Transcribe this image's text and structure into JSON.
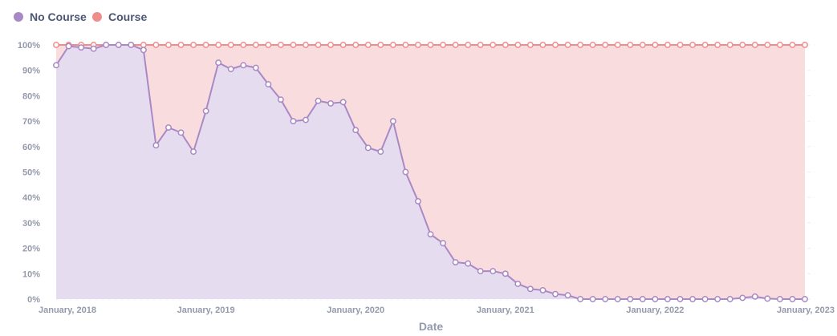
{
  "chart_data": {
    "type": "area",
    "xlabel": "Date",
    "ylabel": "",
    "ylim": [
      0,
      100
    ],
    "y_unit": "%",
    "y_ticks": [
      0,
      10,
      20,
      30,
      40,
      50,
      60,
      70,
      80,
      90,
      100
    ],
    "y_tick_labels": [
      "0%",
      "10%",
      "20%",
      "30%",
      "40%",
      "50%",
      "60%",
      "70%",
      "80%",
      "90%",
      "100%"
    ],
    "x_ticks": [
      "2018-01",
      "2019-01",
      "2020-01",
      "2021-01",
      "2022-01",
      "2023-01"
    ],
    "x_tick_labels": [
      "January, 2018",
      "January, 2019",
      "January, 2020",
      "January, 2021",
      "January, 2022",
      "January, 2023"
    ],
    "stacked": true,
    "grid": "horizontal-dashed",
    "legend": {
      "position": "top-left",
      "entries": [
        "No Course",
        "Course"
      ]
    },
    "x": [
      "2018-01",
      "2018-02",
      "2018-03",
      "2018-04",
      "2018-05",
      "2018-06",
      "2018-07",
      "2018-08",
      "2018-09",
      "2018-10",
      "2018-11",
      "2018-12",
      "2019-01",
      "2019-02",
      "2019-03",
      "2019-04",
      "2019-05",
      "2019-06",
      "2019-07",
      "2019-08",
      "2019-09",
      "2019-10",
      "2019-11",
      "2019-12",
      "2020-01",
      "2020-02",
      "2020-03",
      "2020-04",
      "2020-05",
      "2020-06",
      "2020-07",
      "2020-08",
      "2020-09",
      "2020-10",
      "2020-11",
      "2020-12",
      "2021-01",
      "2021-02",
      "2021-03",
      "2021-04",
      "2021-05",
      "2021-06",
      "2021-07",
      "2021-08",
      "2021-09",
      "2021-10",
      "2021-11",
      "2021-12",
      "2022-01",
      "2022-02",
      "2022-03",
      "2022-04",
      "2022-05",
      "2022-06",
      "2022-07",
      "2022-08",
      "2022-09",
      "2022-10",
      "2022-11",
      "2022-12",
      "2023-01"
    ],
    "series": [
      {
        "name": "No Course",
        "color": "#a989c5",
        "fill": "#e6dcef",
        "values": [
          92,
          99.5,
          99,
          98.5,
          100,
          100,
          100,
          98,
          60.5,
          67.5,
          65.5,
          58,
          74,
          93,
          90.5,
          92,
          91,
          84.5,
          78.5,
          70,
          70.5,
          78,
          77,
          77.5,
          66.5,
          59.5,
          58,
          70,
          50,
          38.5,
          25.5,
          22,
          14.5,
          14,
          11,
          11,
          10,
          6,
          4,
          3.5,
          2,
          1.5,
          0,
          0,
          0,
          0,
          0,
          0,
          0,
          0,
          0,
          0,
          0,
          0,
          0,
          0.5,
          1,
          0.2,
          0,
          0,
          0
        ]
      },
      {
        "name": "Course",
        "color": "#ef8c8c",
        "fill": "#f9dcde",
        "values": [
          8,
          0.5,
          1,
          1.5,
          0,
          0,
          0,
          2,
          39.5,
          32.5,
          34.5,
          42,
          26,
          7,
          9.5,
          8,
          9,
          15.5,
          21.5,
          30,
          29.5,
          22,
          23,
          22.5,
          33.5,
          40.5,
          42,
          30,
          50,
          61.5,
          74.5,
          78,
          85.5,
          86,
          89,
          89,
          90,
          94,
          96,
          96.5,
          98,
          98.5,
          100,
          100,
          100,
          100,
          100,
          100,
          100,
          100,
          100,
          100,
          100,
          100,
          100,
          99.5,
          99,
          99.8,
          100,
          100,
          100
        ]
      }
    ]
  }
}
